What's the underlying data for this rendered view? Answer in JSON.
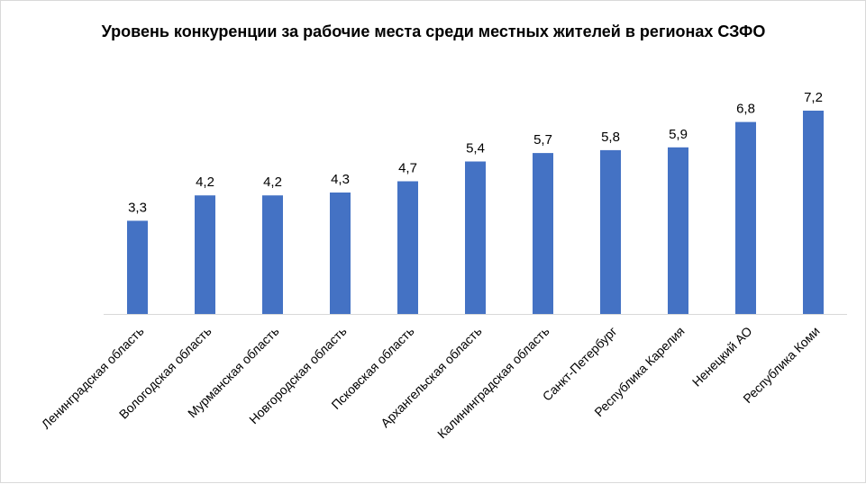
{
  "chart_data": {
    "type": "bar",
    "title": "Уровень конкуренции за рабочие места среди местных жителей  в регионах СЗФО",
    "categories": [
      "Ленинградская область",
      "Вологодская область",
      "Мурманская область",
      "Новгородская область",
      "Псковская область",
      "Архангельская область",
      "Калининградская область",
      "Санкт-Петербург",
      "Республика Карелия",
      "Ненецкий АО",
      "Республика Коми"
    ],
    "values": [
      3.3,
      4.2,
      4.2,
      4.3,
      4.7,
      5.4,
      5.7,
      5.8,
      5.9,
      6.8,
      7.2
    ],
    "value_labels": [
      "3,3",
      "4,2",
      "4,2",
      "4,3",
      "4,7",
      "5,4",
      "5,7",
      "5,8",
      "5,9",
      "6,8",
      "7,2"
    ],
    "xlabel": "",
    "ylabel": "",
    "ylim": [
      0,
      7.2
    ],
    "grid": false,
    "legend": "none",
    "bar_color": "#4472C4"
  }
}
